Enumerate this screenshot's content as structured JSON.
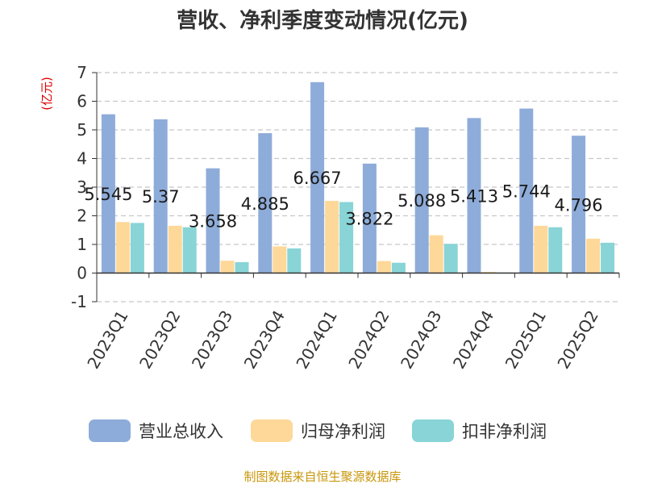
{
  "chart_data": {
    "type": "bar",
    "title": "营收、净利季度变动情况(亿元)",
    "ylabel": "(亿元)",
    "xlabel": "",
    "ylim": [
      -1,
      7
    ],
    "yticks": [
      -1,
      0,
      1,
      2,
      3,
      4,
      5,
      6,
      7
    ],
    "grid": true,
    "legend_position": "bottom",
    "categories": [
      "2023Q1",
      "2023Q2",
      "2023Q3",
      "2023Q4",
      "2024Q1",
      "2024Q2",
      "2024Q3",
      "2024Q4",
      "2025Q1",
      "2025Q2"
    ],
    "series": [
      {
        "name": "营业总收入",
        "color": "#8eacd9",
        "values": [
          5.545,
          5.37,
          3.658,
          4.885,
          6.667,
          3.822,
          5.088,
          5.413,
          5.744,
          4.796
        ]
      },
      {
        "name": "归母净利润",
        "color": "#fed899",
        "values": [
          1.78,
          1.65,
          0.43,
          0.93,
          2.52,
          0.42,
          1.32,
          0.04,
          1.65,
          1.2
        ]
      },
      {
        "name": "扣非净利润",
        "color": "#88d4d6",
        "values": [
          1.75,
          1.6,
          0.38,
          0.86,
          2.48,
          0.36,
          1.02,
          0.02,
          1.6,
          1.06
        ]
      }
    ],
    "data_labels": [
      "5.545",
      "5.37",
      "3.658",
      "4.885",
      "6.667",
      "3.822",
      "5.088",
      "5.413",
      "5.744",
      "4.796"
    ]
  },
  "source": "制图数据来自恒生聚源数据库"
}
